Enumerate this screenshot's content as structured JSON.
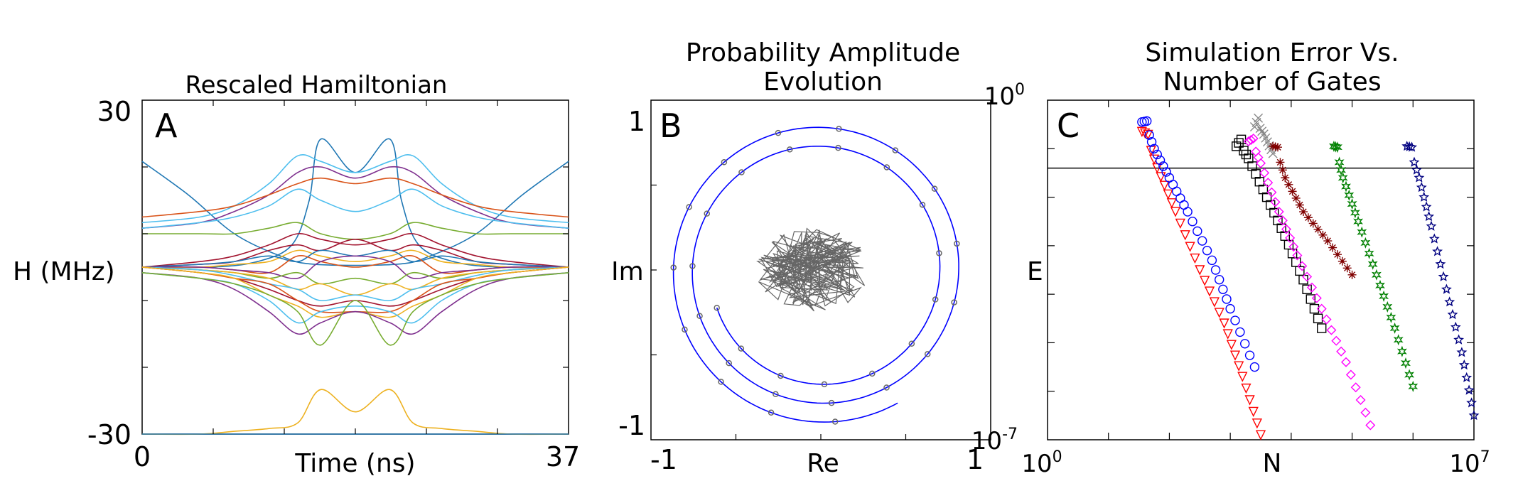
{
  "chart_data": [
    {
      "type": "line",
      "panel_label": "A",
      "title": "Rescaled Hamiltonian",
      "xlabel": "Time (ns)",
      "ylabel": "H (MHz)",
      "xlim": [
        0,
        37
      ],
      "ylim": [
        -30,
        30
      ],
      "x_tick_labels": [
        "0",
        "37"
      ],
      "y_tick_labels": [
        "30",
        "-30"
      ],
      "series_shapes": [
        {
          "color": "#1f77b4",
          "values": [
            19,
            13,
            6,
            2,
            0.5,
            0.5,
            2,
            6,
            13,
            19
          ],
          "x": [
            0,
            4,
            8,
            12,
            15,
            22,
            25,
            29,
            33,
            37
          ]
        },
        {
          "color": "#1f77b4",
          "values": [
            0,
            0,
            1,
            4,
            12,
            23,
            17,
            23,
            12,
            4,
            1,
            0,
            0
          ],
          "x": [
            0,
            6,
            10,
            13,
            14.5,
            15.5,
            18.5,
            21.5,
            22.5,
            24,
            27,
            31,
            37
          ]
        },
        {
          "color": "#4dbeee",
          "values": [
            8,
            9,
            11,
            15,
            20,
            19,
            17,
            19,
            20,
            15,
            11,
            9,
            8
          ],
          "x": [
            0,
            5,
            8,
            11,
            13.5,
            15.5,
            18.5,
            21.5,
            23.5,
            26,
            29,
            32,
            37
          ]
        },
        {
          "color": "#7e2f8e",
          "values": [
            7,
            8,
            10,
            13,
            17,
            18,
            16,
            18,
            17,
            13,
            10,
            8,
            7
          ],
          "x": [
            0,
            5,
            8,
            11,
            13.5,
            15.5,
            18.5,
            21.5,
            23.5,
            26,
            29,
            32,
            37
          ]
        },
        {
          "color": "#4dbeee",
          "values": [
            7,
            8,
            9,
            11,
            14,
            12,
            10,
            12,
            14,
            11,
            9,
            8,
            7
          ],
          "x": [
            0,
            5,
            8,
            11,
            13.5,
            15.5,
            18.5,
            21.5,
            23.5,
            26,
            29,
            32,
            37
          ]
        },
        {
          "color": "#d95319",
          "values": [
            9,
            10,
            11,
            13,
            15,
            16,
            15,
            16,
            15,
            13,
            11,
            10,
            9
          ],
          "x": [
            0,
            5,
            8,
            11,
            13.5,
            15.5,
            18.5,
            21.5,
            23.5,
            26,
            29,
            32,
            37
          ]
        },
        {
          "color": "#77ac30",
          "values": [
            6,
            6,
            6,
            7,
            8,
            6,
            5,
            6,
            8,
            7,
            6,
            6,
            6
          ],
          "x": [
            0,
            5,
            8,
            11,
            13.5,
            15.5,
            18.5,
            21.5,
            23.5,
            26,
            29,
            32,
            37
          ]
        },
        {
          "color": "#a2142f",
          "values": [
            0,
            1,
            2,
            4,
            6,
            5,
            4,
            5,
            6,
            4,
            2,
            1,
            0
          ],
          "x": [
            0,
            5,
            8,
            11,
            13.5,
            15.5,
            18.5,
            21.5,
            23.5,
            26,
            29,
            32,
            37
          ]
        },
        {
          "color": "#a2142f",
          "values": [
            0,
            0.5,
            1,
            3,
            4,
            3,
            5,
            3,
            4,
            3,
            1,
            0.5,
            0
          ],
          "x": [
            0,
            5,
            8,
            11,
            13.5,
            15.5,
            18.5,
            21.5,
            23.5,
            26,
            29,
            32,
            37
          ]
        },
        {
          "color": "#edb120",
          "values": [
            0,
            0,
            0.5,
            1,
            3,
            2,
            1,
            2,
            3,
            1,
            0.5,
            0,
            0
          ],
          "x": [
            0,
            5,
            8,
            11,
            13.5,
            15.5,
            18.5,
            21.5,
            23.5,
            26,
            29,
            32,
            37
          ]
        },
        {
          "color": "#1f77b4",
          "values": [
            0,
            0.5,
            1,
            2,
            1,
            3,
            2,
            3,
            1,
            2,
            1,
            0.5,
            0
          ],
          "x": [
            0,
            5,
            8,
            11,
            13.5,
            15.5,
            18.5,
            21.5,
            23.5,
            26,
            29,
            32,
            37
          ]
        },
        {
          "color": "#d95319",
          "values": [
            0,
            0,
            -0.5,
            -1,
            2,
            1,
            0,
            1,
            2,
            -1,
            -0.5,
            0,
            0
          ],
          "x": [
            0,
            5,
            8,
            11,
            13.5,
            15.5,
            18.5,
            21.5,
            23.5,
            26,
            29,
            32,
            37
          ]
        },
        {
          "color": "#7e2f8e",
          "values": [
            0,
            0,
            -0.5,
            -1,
            -2,
            1,
            2,
            1,
            -2,
            -1,
            -0.5,
            0,
            0
          ],
          "x": [
            0,
            5,
            8,
            11,
            13.5,
            15.5,
            18.5,
            21.5,
            23.5,
            26,
            29,
            32,
            37
          ]
        },
        {
          "color": "#77ac30",
          "values": [
            0,
            -0.5,
            -1,
            -2,
            -1,
            -3,
            -2,
            -3,
            -1,
            -2,
            -1,
            -0.5,
            0
          ],
          "x": [
            0,
            5,
            8,
            11,
            13.5,
            15.5,
            18.5,
            21.5,
            23.5,
            26,
            29,
            32,
            37
          ]
        },
        {
          "color": "#edb120",
          "values": [
            0,
            -0.5,
            -1,
            -2,
            -4,
            -3,
            -5,
            -3,
            -4,
            -2,
            -1,
            -0.5,
            0
          ],
          "x": [
            0,
            5,
            8,
            11,
            13.5,
            15.5,
            18.5,
            21.5,
            23.5,
            26,
            29,
            32,
            37
          ]
        },
        {
          "color": "#4dbeee",
          "values": [
            0,
            -0.5,
            -1.5,
            -3,
            -4,
            -6,
            -5,
            -6,
            -4,
            -3,
            -1.5,
            -0.5,
            0
          ],
          "x": [
            0,
            5,
            8,
            11,
            13.5,
            15.5,
            18.5,
            21.5,
            23.5,
            26,
            29,
            32,
            37
          ]
        },
        {
          "color": "#a2142f",
          "values": [
            0,
            -1,
            -2,
            -4,
            -6,
            -7,
            -6,
            -7,
            -6,
            -4,
            -2,
            -1,
            0
          ],
          "x": [
            0,
            5,
            8,
            11,
            13.5,
            15.5,
            18.5,
            21.5,
            23.5,
            26,
            29,
            32,
            37
          ]
        },
        {
          "color": "#d95319",
          "values": [
            0,
            -1,
            -2,
            -3,
            -6,
            -8,
            -8,
            -8,
            -6,
            -3,
            -2,
            -1,
            0
          ],
          "x": [
            0,
            5,
            8,
            11,
            13.5,
            15.5,
            18.5,
            21.5,
            23.5,
            26,
            29,
            32,
            37
          ]
        },
        {
          "color": "#edb120",
          "values": [
            0,
            -1,
            -2,
            -5,
            -7,
            -9,
            -8,
            -9,
            -7,
            -5,
            -2,
            -1,
            0
          ],
          "x": [
            0,
            5,
            8,
            11,
            13.5,
            15.5,
            18.5,
            21.5,
            23.5,
            26,
            29,
            32,
            37
          ]
        },
        {
          "color": "#7e2f8e",
          "values": [
            -1,
            -2,
            -4,
            -8,
            -12,
            -10,
            -8,
            -10,
            -12,
            -8,
            -4,
            -2,
            -1
          ],
          "x": [
            0,
            5,
            8,
            11,
            13.5,
            15.5,
            18.5,
            21.5,
            23.5,
            26,
            29,
            32,
            37
          ]
        },
        {
          "color": "#4dbeee",
          "values": [
            -1,
            -2,
            -3,
            -6,
            -10,
            -8,
            -7,
            -8,
            -10,
            -6,
            -3,
            -2,
            -1
          ],
          "x": [
            0,
            5,
            8,
            11,
            13.5,
            15.5,
            18.5,
            21.5,
            23.5,
            26,
            29,
            32,
            37
          ]
        },
        {
          "color": "#77ac30",
          "values": [
            -1,
            -2,
            -3,
            -5,
            -8,
            -14,
            -6,
            -14,
            -8,
            -5,
            -3,
            -2,
            -1
          ],
          "x": [
            0,
            5,
            8,
            11,
            13.5,
            15.5,
            18.5,
            21.5,
            23.5,
            26,
            29,
            32,
            37
          ]
        },
        {
          "color": "#edb120",
          "values": [
            -30,
            -30,
            -29.5,
            -29,
            -28,
            -22,
            -26,
            -22,
            -28,
            -29,
            -29.5,
            -30,
            -30
          ],
          "x": [
            0,
            5,
            8,
            11,
            13.5,
            15.5,
            18.5,
            21.5,
            23.5,
            26,
            29,
            32,
            37
          ]
        },
        {
          "color": "#1f77b4",
          "values": [
            -30,
            -30,
            -30,
            -30,
            -30
          ],
          "x": [
            0,
            9,
            18,
            27,
            37
          ]
        }
      ]
    },
    {
      "type": "scatter",
      "panel_label": "B",
      "title_lines": [
        "Probability Amplitude",
        "Evolution"
      ],
      "xlabel": "Re",
      "ylabel": "Im",
      "xlim": [
        -1.05,
        1.05
      ],
      "ylim": [
        -1.05,
        1.05
      ],
      "x_tick_labels": [
        "-1",
        "1"
      ],
      "y_tick_labels": [
        "1",
        "-1"
      ],
      "series": [
        {
          "name": "outer trajectory (theory)",
          "color": "#0000ff",
          "kind": "spiral",
          "r_start": 0.72,
          "r_end": 1.0,
          "theta_start_deg": 200,
          "theta_end_deg": 1020
        },
        {
          "name": "simulated points",
          "color": "#666666",
          "kind": "markers-on-curve",
          "count": 34
        },
        {
          "name": "inner cluster",
          "color": "#666666",
          "center": [
            -0.05,
            0.0
          ],
          "radius": 0.35
        }
      ]
    },
    {
      "type": "scatter",
      "panel_label": "C",
      "title_lines": [
        "Simulation Error Vs.",
        "Number of Gates"
      ],
      "xlabel": "N",
      "ylabel": "E",
      "xscale": "log",
      "yscale": "log",
      "xlim_exp": [
        0,
        7
      ],
      "ylim_exp": [
        -7,
        0
      ],
      "x_tick_labels": [
        {
          "base": "10",
          "exp": "0"
        },
        {
          "base": "10",
          "exp": "7"
        }
      ],
      "y_tick_labels": [
        {
          "base": "10",
          "exp": "0"
        },
        {
          "base": "10",
          "exp": "-7"
        }
      ],
      "threshold_log10": -1.4,
      "series": [
        {
          "color": "#ff0000",
          "marker": "triangle-down",
          "x_log": [
            1.55,
            1.8,
            2.1,
            2.5,
            2.9,
            3.2,
            3.5
          ],
          "y_log": [
            -0.5,
            -1.4,
            -2.3,
            -3.5,
            -4.6,
            -5.7,
            -6.9
          ]
        },
        {
          "color": "#0000ff",
          "marker": "circle",
          "x_log": [
            1.55,
            1.75,
            2.0,
            2.3,
            2.7,
            3.0,
            3.4
          ],
          "y_log": [
            -0.3,
            -1.0,
            -1.6,
            -2.3,
            -3.3,
            -4.3,
            -5.5
          ]
        },
        {
          "color": "#000000",
          "marker": "square",
          "x_log": [
            3.1,
            3.3,
            3.6,
            3.9,
            4.2,
            4.5
          ],
          "y_log": [
            -0.8,
            -1.2,
            -2.0,
            -2.8,
            -3.7,
            -4.7
          ]
        },
        {
          "color": "#ff00ff",
          "marker": "diamond",
          "x_log": [
            3.3,
            3.5,
            3.8,
            4.1,
            4.5,
            4.9,
            5.3
          ],
          "y_log": [
            -0.7,
            -1.3,
            -2.3,
            -3.2,
            -4.3,
            -5.4,
            -6.7
          ]
        },
        {
          "color": "#888888",
          "marker": "x",
          "x_log": [
            3.4,
            3.55,
            3.7
          ],
          "y_log": [
            -0.4,
            -0.7,
            -1.1
          ]
        },
        {
          "color": "#800000",
          "marker": "asterisk",
          "x_log": [
            3.7,
            3.9,
            4.2,
            4.6,
            5.0
          ],
          "y_log": [
            -0.8,
            -1.6,
            -2.3,
            -2.9,
            -3.6
          ]
        },
        {
          "color": "#008000",
          "marker": "hexagram",
          "x_log": [
            4.7,
            4.85,
            5.1,
            5.4,
            5.7,
            6.0
          ],
          "y_log": [
            -0.8,
            -1.6,
            -2.5,
            -3.6,
            -4.7,
            -5.9
          ]
        },
        {
          "color": "#000080",
          "marker": "pentagram",
          "x_log": [
            5.9,
            6.1,
            6.3,
            6.55,
            6.8,
            7.0
          ],
          "y_log": [
            -0.8,
            -1.6,
            -2.6,
            -3.9,
            -5.2,
            -6.5
          ]
        }
      ]
    }
  ]
}
